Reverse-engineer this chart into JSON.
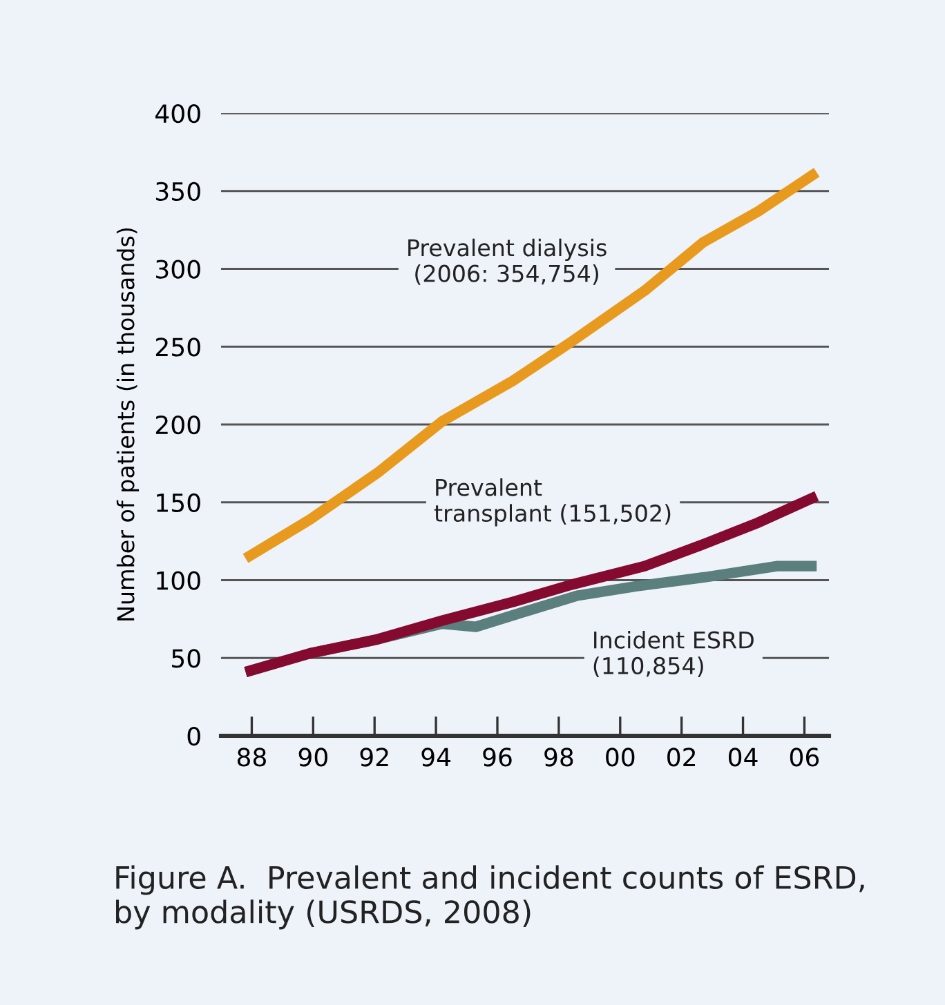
{
  "chart_data": {
    "type": "line",
    "ylabel": "Number of patients (in thousands)",
    "series": [
      {
        "name": "Prevalent dialysis\n(2006: 354,754)",
        "color": "#e89a1e",
        "x": [
          1987.8,
          1989.9,
          1992.1,
          1994.2,
          1996.5,
          1998.4,
          2000.8,
          2002.7,
          2004.5,
          2006.4
        ],
        "values": [
          114,
          139,
          169,
          202,
          228,
          253,
          286,
          317,
          337,
          362
        ]
      },
      {
        "name": "Incident ESRD\n(110,854)",
        "color": "#5a7f7c",
        "x": [
          1987.8,
          1989.9,
          1992.1,
          1994.2,
          1995.3,
          1996.6,
          1998.6,
          2000.5,
          2002.8,
          2005.1,
          2006.4
        ],
        "values": [
          41,
          53,
          62,
          72,
          70,
          78,
          90,
          96,
          102,
          109,
          109
        ]
      },
      {
        "name": "Prevalent\ntransplant (151,502)",
        "color": "#850a2f",
        "x": [
          1987.8,
          1989.9,
          1992.1,
          1994.2,
          1996.5,
          1998.4,
          2000.8,
          2002.7,
          2004.5,
          2006.4
        ],
        "values": [
          41,
          53,
          62,
          74,
          86,
          97,
          109,
          123,
          137,
          154
        ]
      }
    ],
    "xlim": [
      1987,
      2006.8
    ],
    "xticks": [
      {
        "value": 1988,
        "label": "88"
      },
      {
        "value": 1990,
        "label": "90"
      },
      {
        "value": 1992,
        "label": "92"
      },
      {
        "value": 1994,
        "label": "94"
      },
      {
        "value": 1996,
        "label": "96"
      },
      {
        "value": 1998,
        "label": "98"
      },
      {
        "value": 2000,
        "label": "00"
      },
      {
        "value": 2002,
        "label": "02"
      },
      {
        "value": 2004,
        "label": "04"
      },
      {
        "value": 2006,
        "label": "06"
      }
    ],
    "ylim": [
      0,
      400
    ],
    "yticks": [
      0,
      50,
      100,
      150,
      200,
      250,
      300,
      350,
      400
    ],
    "grid": "y",
    "legend": false,
    "line_style": "solid",
    "marker": "none",
    "annotations": [
      "Figure A.  Prevalent and incident counts of ESRD,\nby modality (USRDS, 2008)"
    ]
  }
}
